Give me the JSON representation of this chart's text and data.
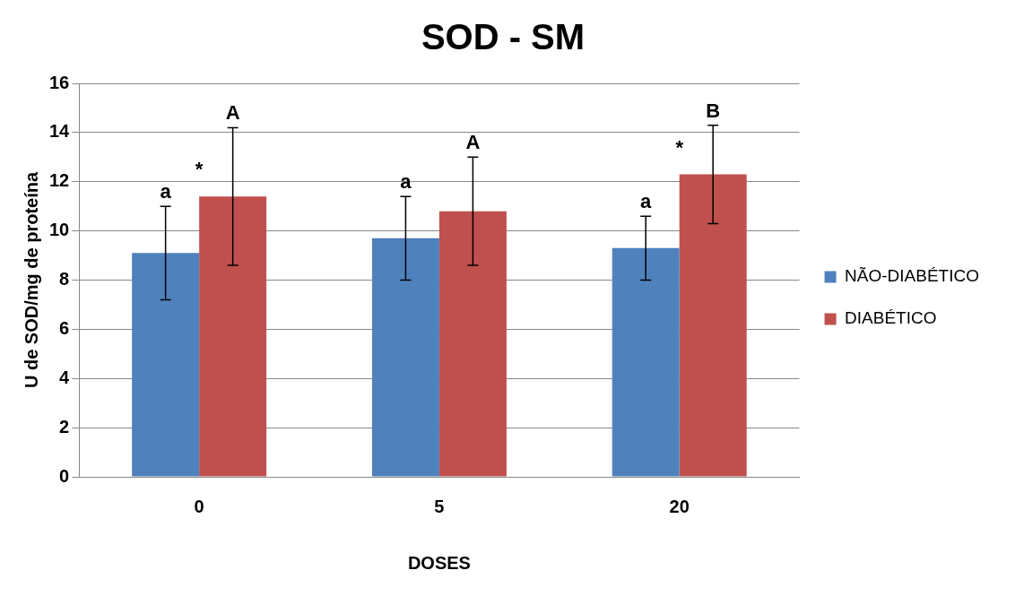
{
  "chart_data": {
    "type": "bar",
    "title": "SOD - SM",
    "xlabel": "DOSES",
    "ylabel": "U de SOD/mg de proteína",
    "categories": [
      "0",
      "5",
      "20"
    ],
    "series": [
      {
        "name": "NÃO-DIABÉTICO",
        "color": "#4f81bd",
        "values": [
          9.1,
          9.7,
          9.3
        ],
        "errors": [
          1.9,
          1.7,
          1.3
        ]
      },
      {
        "name": "DIABÉTICO",
        "color": "#c0504d",
        "values": [
          11.4,
          10.8,
          12.3
        ],
        "errors": [
          2.8,
          2.2,
          2.0
        ]
      }
    ],
    "ylim": [
      0,
      16
    ],
    "yticks": [
      0,
      2,
      4,
      6,
      8,
      10,
      12,
      14,
      16
    ],
    "grid": "y",
    "legend": "right",
    "annotations": [
      {
        "text": "a",
        "x": "0",
        "y": 9.1
      },
      {
        "text": "*",
        "x": "0",
        "y": 11.4
      },
      {
        "text": "a",
        "x": "5",
        "y": 9.7
      },
      {
        "text": "a",
        "x": "20",
        "y": 9.3
      },
      {
        "text": "*",
        "x": "20",
        "y": 12.3
      },
      "A",
      "A",
      "B"
    ]
  }
}
